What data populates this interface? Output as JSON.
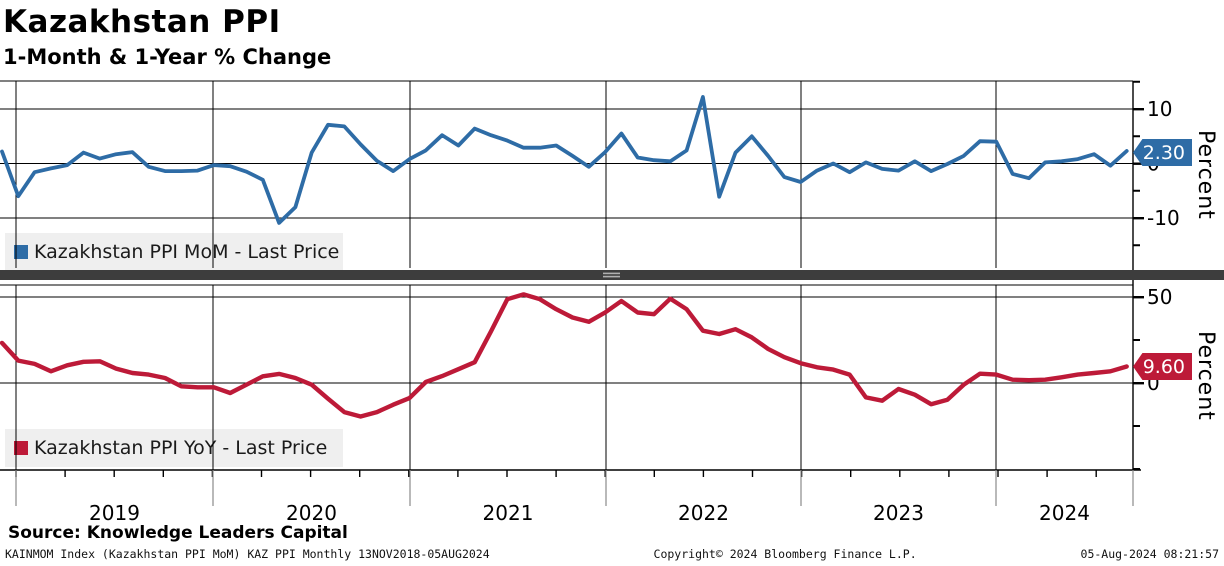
{
  "window": {
    "title": "Kazakhstan PPI",
    "subtitle": "1-Month & 1-Year % Change"
  },
  "source_line": "Source: Knowledge Leaders Capital",
  "footer": {
    "left": "KAINMOM Index (Kazakhstan PPI MoM) KAZ PPI  Monthly 13NOV2018-05AUG2024",
    "center": "Copyright© 2024 Bloomberg Finance L.P.",
    "right": "05-Aug-2024 08:21:57"
  },
  "colors": {
    "mom_blue": "#2e6ca6",
    "yoy_red": "#bd1a38",
    "separator_bar": "#3d3d3d",
    "separator_grip": "#b0b0b0",
    "legend_bg": "#efefef",
    "grid": "#000000",
    "year_line_below_axis": "#8a8a8a"
  },
  "x_axis": {
    "year_labels": [
      "2019",
      "2020",
      "2021",
      "2022",
      "2023",
      "2024"
    ]
  },
  "chart_data": [
    {
      "type": "line",
      "name": "Kazakhstan PPI MoM",
      "legend": "Kazakhstan PPI MoM - Last Price",
      "last_price": "2.30",
      "ylabel": "Percent",
      "color": "#2e6ca6",
      "freq": "monthly",
      "start": "2018-11",
      "end": "2024-08",
      "ylim": [
        -19,
        15
      ],
      "y_ticks_labeled": [
        10,
        0,
        -10
      ],
      "y_ticks_minor": [
        15,
        5,
        -5,
        -15
      ],
      "grid": true,
      "legend_position": "inside-left",
      "values": [
        2.2,
        -6,
        -1.6,
        -0.9,
        -0.3,
        2,
        0.9,
        1.7,
        2.1,
        -0.6,
        -1.4,
        -1.4,
        -1.3,
        -0.3,
        -0.5,
        -1.5,
        -3,
        -10.9,
        -8,
        2,
        7.1,
        6.8,
        3.5,
        0.5,
        -1.4,
        0.8,
        2.4,
        5.2,
        3.3,
        6.4,
        5.2,
        4.2,
        2.9,
        2.9,
        3.3,
        1.4,
        -0.6,
        2.1,
        5.5,
        1.1,
        0.6,
        0.4,
        2.4,
        12.2,
        -6.1,
        2,
        5,
        1.4,
        -2.5,
        -3.4,
        -1.3,
        0,
        -1.6,
        0.2,
        -1,
        -1.3,
        0.4,
        -1.4,
        -0.1,
        1.4,
        4.1,
        4,
        -1.9,
        -2.7,
        0.2,
        0.4,
        0.8,
        1.7,
        -0.4,
        2.3
      ]
    },
    {
      "type": "line",
      "name": "Kazakhstan PPI YoY",
      "legend": "Kazakhstan PPI YoY - Last Price",
      "last_price": "9.60",
      "ylabel": "Percent",
      "color": "#bd1a38",
      "freq": "monthly",
      "start": "2018-11",
      "end": "2024-08",
      "ylim": [
        -51,
        53
      ],
      "y_ticks_labeled": [
        50,
        0
      ],
      "y_ticks_minor": [
        25,
        -25,
        -50
      ],
      "grid": true,
      "legend_position": "inside-left",
      "values": [
        23.3,
        13,
        11.1,
        6.8,
        10.3,
        12.3,
        12.6,
        8.4,
        5.8,
        4.9,
        2.9,
        -1.9,
        -2.5,
        -2.5,
        -5.8,
        -1,
        3.9,
        5.3,
        2.9,
        -1,
        -9.1,
        -16.9,
        -19.5,
        -16.9,
        -12.6,
        -8.8,
        0.6,
        4,
        8,
        12.1,
        30,
        48.7,
        51.5,
        48.7,
        42.9,
        38.1,
        35.6,
        41,
        47.7,
        41,
        40,
        49,
        42.9,
        30.4,
        28.5,
        31.3,
        26.5,
        19.8,
        15,
        11.5,
        9.1,
        7.8,
        4.9,
        -8.4,
        -10.3,
        -3.5,
        -6.8,
        -12.3,
        -9.7,
        -1,
        5.4,
        4.9,
        1.9,
        1.6,
        1.9,
        3.3,
        4.9,
        5.8,
        6.8,
        9.6
      ]
    }
  ]
}
